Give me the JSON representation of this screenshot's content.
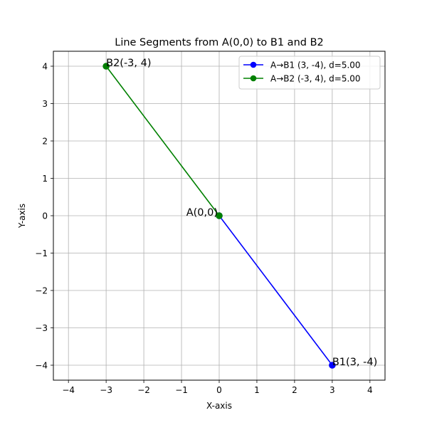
{
  "chart_data": {
    "type": "line",
    "title": "Line Segments from A(0,0) to B1 and B2",
    "xlabel": "X-axis",
    "ylabel": "Y-axis",
    "xlim": [
      -4.4,
      4.4
    ],
    "ylim": [
      -4.4,
      4.4
    ],
    "xticks": [
      -4,
      -3,
      -2,
      -1,
      0,
      1,
      2,
      3,
      4
    ],
    "yticks": [
      -4,
      -3,
      -2,
      -1,
      0,
      1,
      2,
      3,
      4
    ],
    "xtick_labels": [
      "−4",
      "−3",
      "−2",
      "−1",
      "0",
      "1",
      "2",
      "3",
      "4"
    ],
    "ytick_labels": [
      "−4",
      "−3",
      "−2",
      "−1",
      "0",
      "1",
      "2",
      "3",
      "4"
    ],
    "grid": true,
    "legend_position": "top-right",
    "series": [
      {
        "name": "A→B1 (3, -4), d=5.00",
        "color": "#0000ff",
        "marker": "circle",
        "points": [
          {
            "x": 0,
            "y": 0
          },
          {
            "x": 3,
            "y": -4
          }
        ]
      },
      {
        "name": "A→B2 (-3, 4), d=5.00",
        "color": "#008000",
        "marker": "circle",
        "points": [
          {
            "x": 0,
            "y": 0
          },
          {
            "x": -3,
            "y": 4
          }
        ]
      }
    ],
    "annotations": [
      {
        "text": "A(0,0)",
        "x": 0,
        "y": 0,
        "anchor": "end"
      },
      {
        "text": "B1(3, -4)",
        "x": 3,
        "y": -4,
        "anchor": "start"
      },
      {
        "text": "B2(-3, 4)",
        "x": -3,
        "y": 4,
        "anchor": "start"
      }
    ]
  }
}
